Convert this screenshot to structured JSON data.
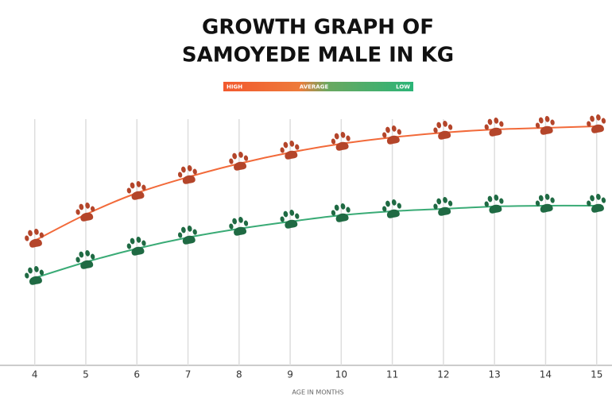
{
  "chart_data": {
    "type": "line",
    "title": [
      "GROWTH GRAPH OF",
      "SAMOYEDE MALE IN KG"
    ],
    "x_label": "AGE IN MONTHS",
    "legend_middle": "AVERAGE",
    "x": [
      4,
      5,
      6,
      7,
      8,
      9,
      10,
      11,
      12,
      13,
      14,
      15
    ],
    "xticks": [
      4,
      5,
      6,
      7,
      8,
      9,
      10,
      11,
      12,
      13,
      14,
      15
    ],
    "xlim": [
      3.32,
      15.3
    ],
    "ylim": [
      0,
      31
    ],
    "grid": true,
    "series": [
      {
        "name": "HIGH",
        "color": "#f26a3a",
        "marker_color": "#b4452a",
        "values": [
          15.7,
          19,
          21.7,
          23.7,
          25.4,
          26.8,
          27.9,
          28.7,
          29.3,
          29.7,
          29.9,
          30.1
        ]
      },
      {
        "name": "LOW",
        "color": "#3aab76",
        "marker_color": "#1f6a43",
        "values": [
          11,
          13,
          14.7,
          16.1,
          17.2,
          18.1,
          18.9,
          19.4,
          19.7,
          20,
          20.1,
          20.1
        ]
      }
    ]
  }
}
